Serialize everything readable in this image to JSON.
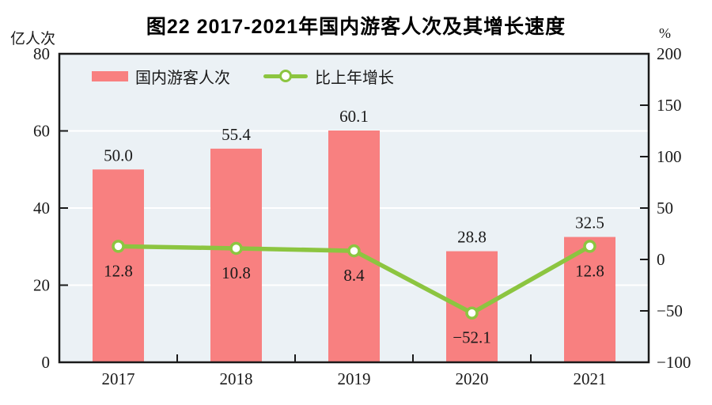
{
  "title": "图22  2017-2021年国内游客人次及其增长速度",
  "legend": {
    "bar_label": "国内游客人次",
    "line_label": "比上年增长"
  },
  "colors": {
    "bar": "#F88080",
    "line": "#8CC540",
    "marker_fill": "#FFFFFF",
    "plot_bg": "#EBF1F5",
    "grid": "#FFFFFF",
    "axis": "#1A1A1A",
    "text": "#1A1A1A"
  },
  "chart_data": {
    "type": "bar+line combo",
    "title": "图22  2017-2021年国内游客人次及其增长速度",
    "categories": [
      "2017",
      "2018",
      "2019",
      "2020",
      "2021"
    ],
    "series": [
      {
        "name": "国内游客人次",
        "type": "bar",
        "axis": "left",
        "values": [
          50.0,
          55.4,
          60.1,
          28.8,
          32.5
        ]
      },
      {
        "name": "比上年增长",
        "type": "line",
        "axis": "right",
        "values": [
          12.8,
          10.8,
          8.4,
          -52.1,
          12.8
        ]
      }
    ],
    "left_axis": {
      "label": "亿人次",
      "min": 0,
      "max": 80,
      "step": 20
    },
    "right_axis": {
      "label": "%",
      "min": -100,
      "max": 200,
      "step": 50
    },
    "grid": "horizontal white lines at left-axis ticks",
    "legend_position": "top-left inside plot"
  }
}
